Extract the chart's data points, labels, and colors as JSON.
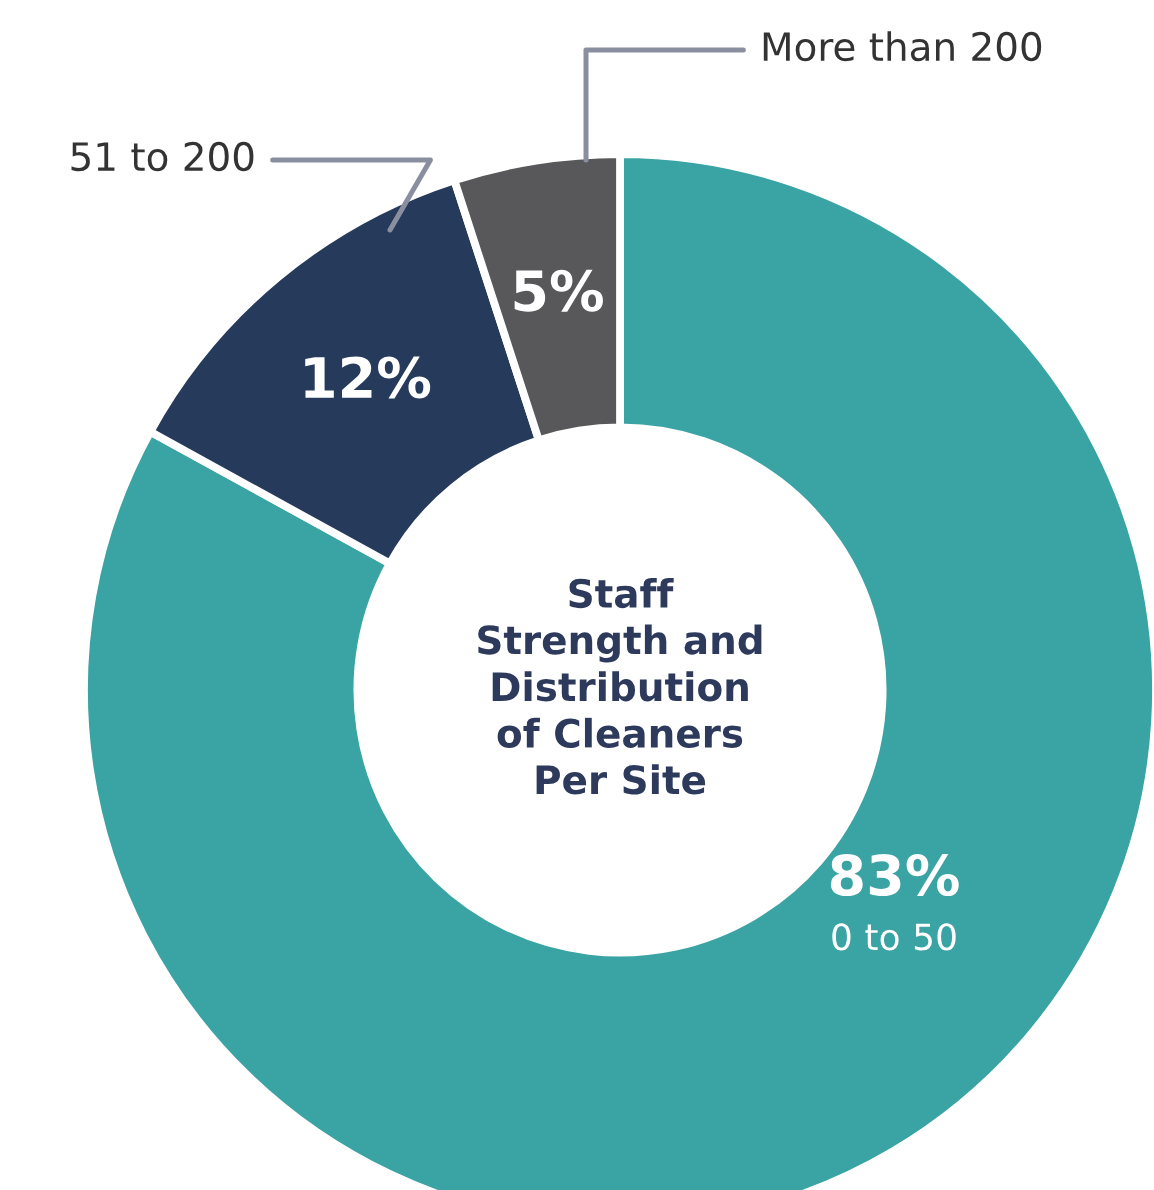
{
  "chart_data": {
    "type": "donut",
    "title": "Staff Strength and Distribution of Cleaners Per Site",
    "categories": [
      "0 to 50",
      "51 to 200",
      "More than 200"
    ],
    "values": [
      83,
      12,
      5
    ],
    "value_labels": [
      "83%",
      "12%",
      "5%"
    ],
    "colors": [
      "#3aa3a3",
      "#263a5c",
      "#58585a"
    ]
  }
}
